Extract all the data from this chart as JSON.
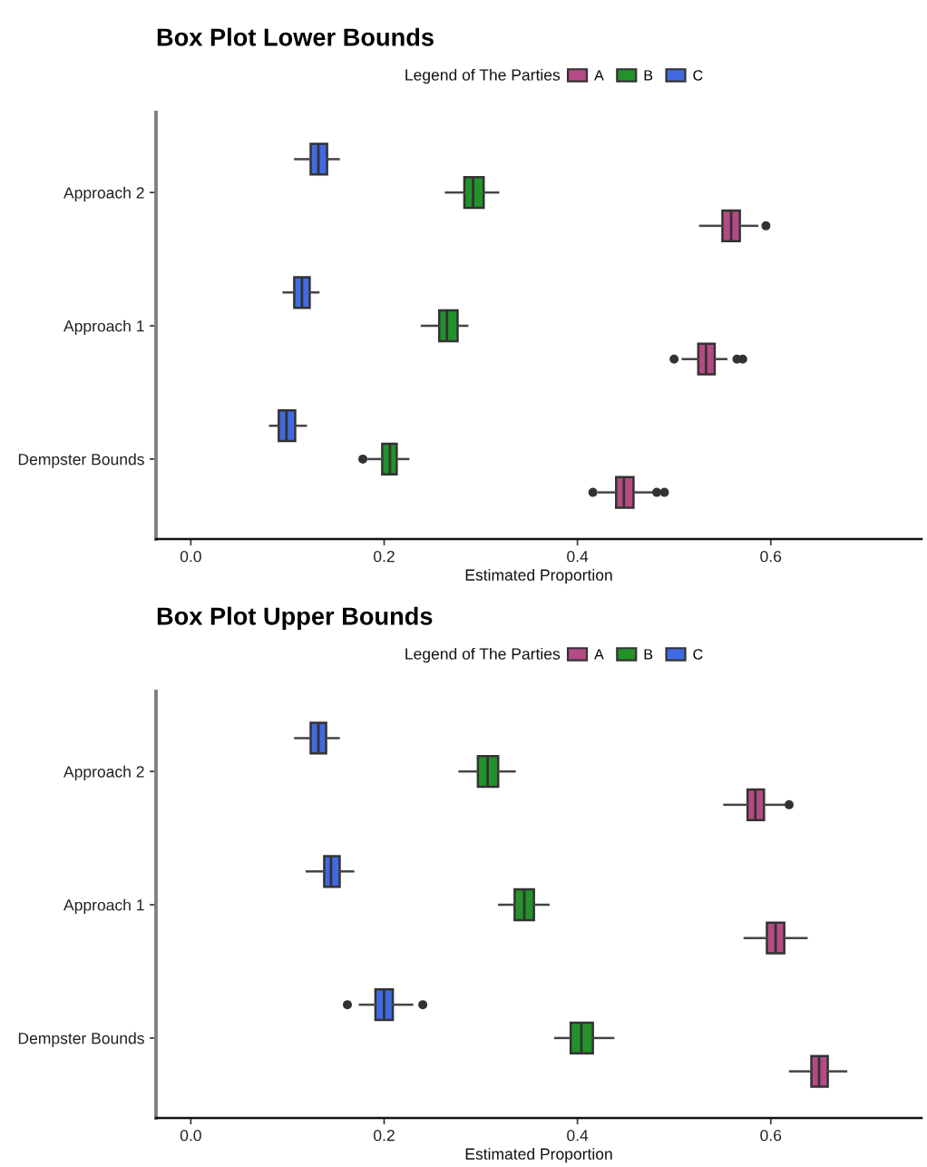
{
  "chart_data": [
    {
      "type": "box",
      "title": "Box Plot Lower Bounds",
      "xlabel": "Estimated Proportion",
      "orientation": "horizontal",
      "legend": "top",
      "legend_title": "Legend of The Parties",
      "categories": [
        "Approach 2",
        "Approach 1",
        "Dempster Bounds"
      ],
      "xlim": [
        -0.036,
        0.756
      ],
      "xticks": [
        {
          "value": 0,
          "label": "0.0"
        },
        0.2,
        0.4,
        0.6
      ],
      "series": [
        {
          "name": "A",
          "color": "#b44b84",
          "boxes": [
            {
              "low": 0.527,
              "q1": 0.55,
              "median": 0.559,
              "q3": 0.568,
              "high": 0.586,
              "outliers": [
                0.595
              ]
            },
            {
              "low": 0.509,
              "q1": 0.525,
              "median": 0.533,
              "q3": 0.542,
              "high": 0.554,
              "outliers": [
                0.5,
                0.565,
                0.571
              ]
            },
            {
              "low": 0.422,
              "q1": 0.44,
              "median": 0.448,
              "q3": 0.458,
              "high": 0.479,
              "outliers": [
                0.416,
                0.482,
                0.49
              ]
            }
          ]
        },
        {
          "name": "B",
          "color": "#23922a",
          "boxes": [
            {
              "low": 0.264,
              "q1": 0.283,
              "median": 0.292,
              "q3": 0.303,
              "high": 0.318
            },
            {
              "low": 0.239,
              "q1": 0.257,
              "median": 0.265,
              "q3": 0.276,
              "high": 0.286
            },
            {
              "low": 0.184,
              "q1": 0.198,
              "median": 0.206,
              "q3": 0.213,
              "high": 0.225,
              "outliers": [
                0.178
              ]
            }
          ]
        },
        {
          "name": "C",
          "color": "#4169e1",
          "boxes": [
            {
              "low": 0.108,
              "q1": 0.124,
              "median": 0.132,
              "q3": 0.141,
              "high": 0.153
            },
            {
              "low": 0.096,
              "q1": 0.107,
              "median": 0.115,
              "q3": 0.123,
              "high": 0.132
            },
            {
              "low": 0.082,
              "q1": 0.091,
              "median": 0.099,
              "q3": 0.108,
              "high": 0.119
            }
          ]
        }
      ]
    },
    {
      "type": "box",
      "title": "Box Plot Upper Bounds",
      "xlabel": "Estimated Proportion",
      "orientation": "horizontal",
      "legend": "top",
      "legend_title": "Legend of The Parties",
      "categories": [
        "Approach 2",
        "Approach 1",
        "Dempster Bounds"
      ],
      "xlim": [
        -0.036,
        0.756
      ],
      "xticks": [
        {
          "value": 0,
          "label": "0.0"
        },
        0.2,
        0.4,
        0.6
      ],
      "series": [
        {
          "name": "A",
          "color": "#b44b84",
          "boxes": [
            {
              "low": 0.552,
              "q1": 0.576,
              "median": 0.584,
              "q3": 0.593,
              "high": 0.614,
              "outliers": [
                0.619
              ]
            },
            {
              "low": 0.573,
              "q1": 0.596,
              "median": 0.605,
              "q3": 0.614,
              "high": 0.637
            },
            {
              "low": 0.62,
              "q1": 0.642,
              "median": 0.65,
              "q3": 0.659,
              "high": 0.678
            }
          ]
        },
        {
          "name": "B",
          "color": "#23922a",
          "boxes": [
            {
              "low": 0.278,
              "q1": 0.297,
              "median": 0.307,
              "q3": 0.318,
              "high": 0.335
            },
            {
              "low": 0.319,
              "q1": 0.335,
              "median": 0.345,
              "q3": 0.355,
              "high": 0.37
            },
            {
              "low": 0.377,
              "q1": 0.393,
              "median": 0.404,
              "q3": 0.416,
              "high": 0.437
            }
          ]
        },
        {
          "name": "C",
          "color": "#4169e1",
          "boxes": [
            {
              "low": 0.108,
              "q1": 0.124,
              "median": 0.132,
              "q3": 0.14,
              "high": 0.153
            },
            {
              "low": 0.12,
              "q1": 0.138,
              "median": 0.145,
              "q3": 0.154,
              "high": 0.168
            },
            {
              "low": 0.175,
              "q1": 0.191,
              "median": 0.2,
              "q3": 0.209,
              "high": 0.229,
              "outliers": [
                0.162,
                0.24
              ]
            }
          ]
        }
      ]
    }
  ]
}
